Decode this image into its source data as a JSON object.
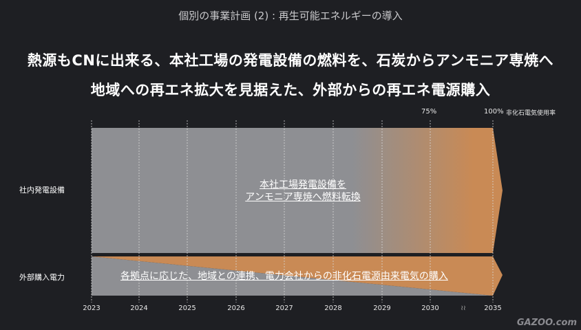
{
  "subtitle": "個別の事業計画 (2) : 再生可能エネルギーの導入",
  "headlines": [
    "熱源もCNに出来る、本社工場の発電設備の燃料を、石炭からアンモニア専焼へ",
    "地域への再エネ拡大を見据えた、外部からの再エネ電源購入"
  ],
  "rows": {
    "internal": "社内発電設備",
    "external": "外部購入電力"
  },
  "internal_text": [
    "本社工場発電設備を",
    "アンモニア専焼へ燃料転換"
  ],
  "external_text": "各拠点に応じた、地域との連携、電力会社からの非化石電源由来電気の購入",
  "markers": {
    "p75": "75%",
    "p100": "100%",
    "p100_label": "非化石電気使用率"
  },
  "years": [
    "2023",
    "2024",
    "2025",
    "2026",
    "2027",
    "2028",
    "2029",
    "2030",
    "2035"
  ],
  "break_symbol": "≀≀",
  "logo": "GAZOO.com",
  "colors": {
    "grey": "#8e8f93",
    "orange": "#c98a55",
    "bg": "#1e1f23"
  }
}
